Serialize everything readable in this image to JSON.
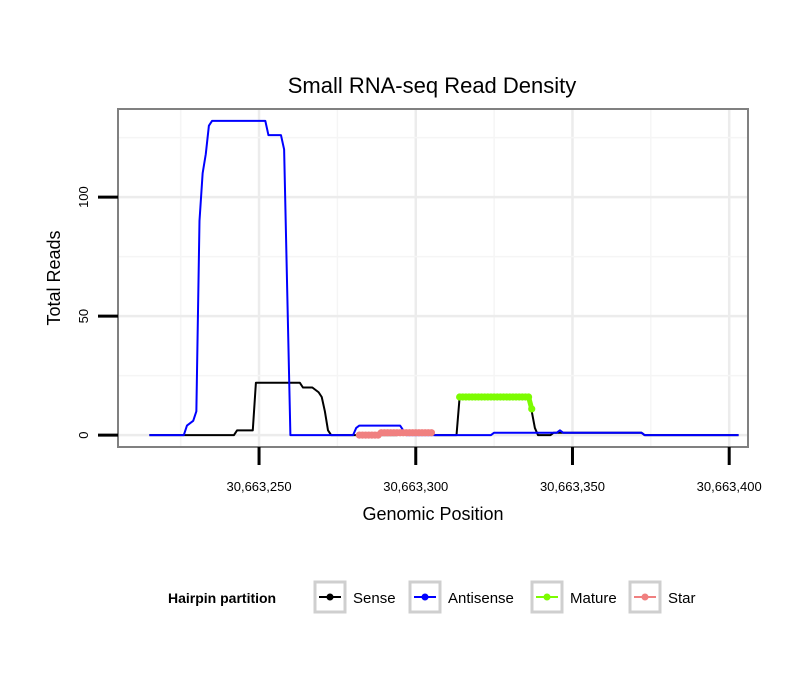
{
  "chart_data": {
    "type": "line",
    "title": "Small RNA-seq Read Density",
    "xlabel": "Genomic Position",
    "ylabel": "Total Reads",
    "xlim": [
      30663205,
      30663406
    ],
    "ylim": [
      -5,
      137
    ],
    "x_ticks": [
      30663250,
      30663300,
      30663350,
      30663400
    ],
    "x_tick_labels": [
      "30,663,250",
      "30,663,300",
      "30,663,350",
      "30,663,400"
    ],
    "y_ticks": [
      0,
      50,
      100
    ],
    "y_tick_labels": [
      "0",
      "50",
      "100"
    ],
    "grid": true,
    "legend": {
      "title": "Hairpin partition",
      "position": "bottom"
    },
    "series": [
      {
        "name": "Sense",
        "color": "#000000",
        "style": "line",
        "points": [
          [
            30663215,
            0
          ],
          [
            30663242,
            0
          ],
          [
            30663243,
            2
          ],
          [
            30663248,
            2
          ],
          [
            30663249,
            22
          ],
          [
            30663263,
            22
          ],
          [
            30663264,
            20
          ],
          [
            30663267,
            20
          ],
          [
            30663269,
            18
          ],
          [
            30663270,
            16
          ],
          [
            30663271,
            10
          ],
          [
            30663272,
            2
          ],
          [
            30663273,
            0
          ],
          [
            30663294,
            0
          ],
          [
            30663295,
            1
          ],
          [
            30663305,
            1
          ],
          [
            30663306,
            0
          ],
          [
            30663313,
            0
          ],
          [
            30663314,
            16
          ],
          [
            30663336,
            16
          ],
          [
            30663337,
            10
          ],
          [
            30663338,
            3
          ],
          [
            30663339,
            0
          ],
          [
            30663343,
            0
          ],
          [
            30663344,
            1
          ],
          [
            30663372,
            1
          ],
          [
            30663373,
            0
          ],
          [
            30663403,
            0
          ]
        ]
      },
      {
        "name": "Antisense",
        "color": "#0000ff",
        "style": "line",
        "points": [
          [
            30663215,
            0
          ],
          [
            30663226,
            0
          ],
          [
            30663227,
            4
          ],
          [
            30663228,
            5
          ],
          [
            30663229,
            6
          ],
          [
            30663230,
            10
          ],
          [
            30663231,
            90
          ],
          [
            30663232,
            110
          ],
          [
            30663233,
            118
          ],
          [
            30663234,
            130
          ],
          [
            30663235,
            132
          ],
          [
            30663252,
            132
          ],
          [
            30663253,
            126
          ],
          [
            30663257,
            126
          ],
          [
            30663258,
            120
          ],
          [
            30663259,
            60
          ],
          [
            30663260,
            0
          ],
          [
            30663280,
            0
          ],
          [
            30663281,
            3
          ],
          [
            30663282,
            4
          ],
          [
            30663295,
            4
          ],
          [
            30663296,
            2
          ],
          [
            30663297,
            0
          ],
          [
            30663324,
            0
          ],
          [
            30663325,
            1
          ],
          [
            30663345,
            1
          ],
          [
            30663346,
            2
          ],
          [
            30663347,
            1
          ],
          [
            30663348,
            1
          ],
          [
            30663372,
            1
          ],
          [
            30663373,
            0
          ],
          [
            30663403,
            0
          ]
        ]
      },
      {
        "name": "Mature",
        "color": "#7cfc00",
        "style": "line-points",
        "points": [
          [
            30663314,
            16
          ],
          [
            30663315,
            16
          ],
          [
            30663316,
            16
          ],
          [
            30663317,
            16
          ],
          [
            30663318,
            16
          ],
          [
            30663319,
            16
          ],
          [
            30663320,
            16
          ],
          [
            30663321,
            16
          ],
          [
            30663322,
            16
          ],
          [
            30663323,
            16
          ],
          [
            30663324,
            16
          ],
          [
            30663325,
            16
          ],
          [
            30663326,
            16
          ],
          [
            30663327,
            16
          ],
          [
            30663328,
            16
          ],
          [
            30663329,
            16
          ],
          [
            30663330,
            16
          ],
          [
            30663331,
            16
          ],
          [
            30663332,
            16
          ],
          [
            30663333,
            16
          ],
          [
            30663334,
            16
          ],
          [
            30663335,
            16
          ],
          [
            30663336,
            16
          ],
          [
            30663337,
            11
          ]
        ]
      },
      {
        "name": "Star",
        "color": "#f08080",
        "style": "line-points",
        "points": [
          [
            30663282,
            0
          ],
          [
            30663283,
            0
          ],
          [
            30663284,
            0
          ],
          [
            30663285,
            0
          ],
          [
            30663286,
            0
          ],
          [
            30663287,
            0
          ],
          [
            30663288,
            0
          ],
          [
            30663289,
            1
          ],
          [
            30663290,
            1
          ],
          [
            30663291,
            1
          ],
          [
            30663292,
            1
          ],
          [
            30663293,
            1
          ],
          [
            30663294,
            1
          ],
          [
            30663295,
            1
          ],
          [
            30663296,
            1
          ],
          [
            30663297,
            1
          ],
          [
            30663298,
            1
          ],
          [
            30663299,
            1
          ],
          [
            30663300,
            1
          ],
          [
            30663301,
            1
          ],
          [
            30663302,
            1
          ],
          [
            30663303,
            1
          ],
          [
            30663304,
            1
          ],
          [
            30663305,
            1
          ]
        ]
      }
    ]
  }
}
